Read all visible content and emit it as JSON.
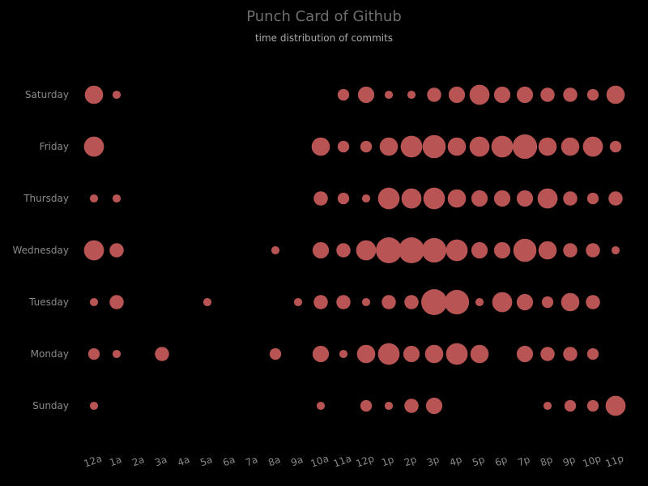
{
  "chart_data": {
    "type": "scatter",
    "title": "Punch Card of Github",
    "subtitle": "time distribution of commits",
    "xlabel": "",
    "ylabel": "",
    "x_categories": [
      "12a",
      "1a",
      "2a",
      "3a",
      "4a",
      "5a",
      "6a",
      "7a",
      "8a",
      "9a",
      "10a",
      "11a",
      "12p",
      "1p",
      "2p",
      "3p",
      "4p",
      "5p",
      "6p",
      "7p",
      "8p",
      "9p",
      "10p",
      "11p"
    ],
    "y_categories": [
      "Saturday",
      "Friday",
      "Thursday",
      "Wednesday",
      "Tuesday",
      "Monday",
      "Sunday"
    ],
    "max_value": 10,
    "grid": false,
    "legend": "none",
    "marker_color": "#b85454",
    "points": [
      {
        "day": "Saturday",
        "hour": "12a",
        "value": 5
      },
      {
        "day": "Saturday",
        "hour": "1a",
        "value": 1
      },
      {
        "day": "Saturday",
        "hour": "11a",
        "value": 2
      },
      {
        "day": "Saturday",
        "hour": "12p",
        "value": 4
      },
      {
        "day": "Saturday",
        "hour": "1p",
        "value": 1
      },
      {
        "day": "Saturday",
        "hour": "2p",
        "value": 1
      },
      {
        "day": "Saturday",
        "hour": "3p",
        "value": 3
      },
      {
        "day": "Saturday",
        "hour": "4p",
        "value": 4
      },
      {
        "day": "Saturday",
        "hour": "5p",
        "value": 6
      },
      {
        "day": "Saturday",
        "hour": "6p",
        "value": 4
      },
      {
        "day": "Saturday",
        "hour": "7p",
        "value": 4
      },
      {
        "day": "Saturday",
        "hour": "8p",
        "value": 3
      },
      {
        "day": "Saturday",
        "hour": "9p",
        "value": 3
      },
      {
        "day": "Saturday",
        "hour": "10p",
        "value": 2
      },
      {
        "day": "Saturday",
        "hour": "11p",
        "value": 5
      },
      {
        "day": "Friday",
        "hour": "12a",
        "value": 6
      },
      {
        "day": "Friday",
        "hour": "10a",
        "value": 5
      },
      {
        "day": "Friday",
        "hour": "11a",
        "value": 2
      },
      {
        "day": "Friday",
        "hour": "12p",
        "value": 2
      },
      {
        "day": "Friday",
        "hour": "1p",
        "value": 5
      },
      {
        "day": "Friday",
        "hour": "2p",
        "value": 7
      },
      {
        "day": "Friday",
        "hour": "3p",
        "value": 8
      },
      {
        "day": "Friday",
        "hour": "4p",
        "value": 5
      },
      {
        "day": "Friday",
        "hour": "5p",
        "value": 6
      },
      {
        "day": "Friday",
        "hour": "6p",
        "value": 7
      },
      {
        "day": "Friday",
        "hour": "7p",
        "value": 9
      },
      {
        "day": "Friday",
        "hour": "8p",
        "value": 5
      },
      {
        "day": "Friday",
        "hour": "9p",
        "value": 5
      },
      {
        "day": "Friday",
        "hour": "10p",
        "value": 6
      },
      {
        "day": "Friday",
        "hour": "11p",
        "value": 2
      },
      {
        "day": "Thursday",
        "hour": "12a",
        "value": 1
      },
      {
        "day": "Thursday",
        "hour": "1a",
        "value": 1
      },
      {
        "day": "Thursday",
        "hour": "10a",
        "value": 3
      },
      {
        "day": "Thursday",
        "hour": "11a",
        "value": 2
      },
      {
        "day": "Thursday",
        "hour": "12p",
        "value": 1
      },
      {
        "day": "Thursday",
        "hour": "1p",
        "value": 7
      },
      {
        "day": "Thursday",
        "hour": "2p",
        "value": 6
      },
      {
        "day": "Thursday",
        "hour": "3p",
        "value": 7
      },
      {
        "day": "Thursday",
        "hour": "4p",
        "value": 5
      },
      {
        "day": "Thursday",
        "hour": "5p",
        "value": 4
      },
      {
        "day": "Thursday",
        "hour": "6p",
        "value": 4
      },
      {
        "day": "Thursday",
        "hour": "7p",
        "value": 4
      },
      {
        "day": "Thursday",
        "hour": "8p",
        "value": 6
      },
      {
        "day": "Thursday",
        "hour": "9p",
        "value": 3
      },
      {
        "day": "Thursday",
        "hour": "10p",
        "value": 2
      },
      {
        "day": "Thursday",
        "hour": "11p",
        "value": 3
      },
      {
        "day": "Wednesday",
        "hour": "12a",
        "value": 6
      },
      {
        "day": "Wednesday",
        "hour": "1a",
        "value": 3
      },
      {
        "day": "Wednesday",
        "hour": "8a",
        "value": 1
      },
      {
        "day": "Wednesday",
        "hour": "10a",
        "value": 4
      },
      {
        "day": "Wednesday",
        "hour": "11a",
        "value": 3
      },
      {
        "day": "Wednesday",
        "hour": "12p",
        "value": 6
      },
      {
        "day": "Wednesday",
        "hour": "1p",
        "value": 10
      },
      {
        "day": "Wednesday",
        "hour": "2p",
        "value": 10
      },
      {
        "day": "Wednesday",
        "hour": "3p",
        "value": 9
      },
      {
        "day": "Wednesday",
        "hour": "4p",
        "value": 7
      },
      {
        "day": "Wednesday",
        "hour": "5p",
        "value": 4
      },
      {
        "day": "Wednesday",
        "hour": "6p",
        "value": 4
      },
      {
        "day": "Wednesday",
        "hour": "7p",
        "value": 8
      },
      {
        "day": "Wednesday",
        "hour": "8p",
        "value": 5
      },
      {
        "day": "Wednesday",
        "hour": "9p",
        "value": 3
      },
      {
        "day": "Wednesday",
        "hour": "10p",
        "value": 3
      },
      {
        "day": "Wednesday",
        "hour": "11p",
        "value": 1
      },
      {
        "day": "Tuesday",
        "hour": "12a",
        "value": 1
      },
      {
        "day": "Tuesday",
        "hour": "1a",
        "value": 3
      },
      {
        "day": "Tuesday",
        "hour": "5a",
        "value": 1
      },
      {
        "day": "Tuesday",
        "hour": "9a",
        "value": 1
      },
      {
        "day": "Tuesday",
        "hour": "10a",
        "value": 3
      },
      {
        "day": "Tuesday",
        "hour": "11a",
        "value": 3
      },
      {
        "day": "Tuesday",
        "hour": "12p",
        "value": 1
      },
      {
        "day": "Tuesday",
        "hour": "1p",
        "value": 3
      },
      {
        "day": "Tuesday",
        "hour": "2p",
        "value": 3
      },
      {
        "day": "Tuesday",
        "hour": "3p",
        "value": 10
      },
      {
        "day": "Tuesday",
        "hour": "4p",
        "value": 9
      },
      {
        "day": "Tuesday",
        "hour": "5p",
        "value": 1
      },
      {
        "day": "Tuesday",
        "hour": "6p",
        "value": 6
      },
      {
        "day": "Tuesday",
        "hour": "7p",
        "value": 4
      },
      {
        "day": "Tuesday",
        "hour": "8p",
        "value": 2
      },
      {
        "day": "Tuesday",
        "hour": "9p",
        "value": 5
      },
      {
        "day": "Tuesday",
        "hour": "10p",
        "value": 3
      },
      {
        "day": "Monday",
        "hour": "12a",
        "value": 2
      },
      {
        "day": "Monday",
        "hour": "1a",
        "value": 1
      },
      {
        "day": "Monday",
        "hour": "3a",
        "value": 3
      },
      {
        "day": "Monday",
        "hour": "8a",
        "value": 2
      },
      {
        "day": "Monday",
        "hour": "10a",
        "value": 4
      },
      {
        "day": "Monday",
        "hour": "11a",
        "value": 1
      },
      {
        "day": "Monday",
        "hour": "12p",
        "value": 5
      },
      {
        "day": "Monday",
        "hour": "1p",
        "value": 7
      },
      {
        "day": "Monday",
        "hour": "2p",
        "value": 4
      },
      {
        "day": "Monday",
        "hour": "3p",
        "value": 5
      },
      {
        "day": "Monday",
        "hour": "4p",
        "value": 7
      },
      {
        "day": "Monday",
        "hour": "5p",
        "value": 5
      },
      {
        "day": "Monday",
        "hour": "7p",
        "value": 4
      },
      {
        "day": "Monday",
        "hour": "8p",
        "value": 3
      },
      {
        "day": "Monday",
        "hour": "9p",
        "value": 3
      },
      {
        "day": "Monday",
        "hour": "10p",
        "value": 2
      },
      {
        "day": "Sunday",
        "hour": "12a",
        "value": 1
      },
      {
        "day": "Sunday",
        "hour": "10a",
        "value": 1
      },
      {
        "day": "Sunday",
        "hour": "12p",
        "value": 2
      },
      {
        "day": "Sunday",
        "hour": "1p",
        "value": 1
      },
      {
        "day": "Sunday",
        "hour": "2p",
        "value": 3
      },
      {
        "day": "Sunday",
        "hour": "3p",
        "value": 4
      },
      {
        "day": "Sunday",
        "hour": "8p",
        "value": 1
      },
      {
        "day": "Sunday",
        "hour": "9p",
        "value": 2
      },
      {
        "day": "Sunday",
        "hour": "10p",
        "value": 2
      },
      {
        "day": "Sunday",
        "hour": "11p",
        "value": 6
      }
    ]
  }
}
